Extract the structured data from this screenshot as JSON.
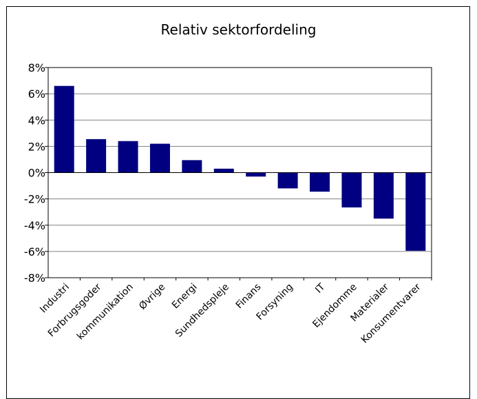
{
  "chart_data": {
    "type": "bar",
    "title": "Relativ sektorfordeling",
    "xlabel": "",
    "ylabel": "",
    "categories": [
      "Industri",
      "Forbrugsgoder",
      "kommunikation",
      "Øvrige",
      "Energi",
      "Sundhedspleje",
      "Finans",
      "Forsyning",
      "IT",
      "Ejendomme",
      "Materialer",
      "Konsumentvarer"
    ],
    "values": [
      6.6,
      2.55,
      2.4,
      2.2,
      0.95,
      0.3,
      -0.3,
      -1.2,
      -1.45,
      -2.65,
      -3.5,
      -5.95
    ],
    "ylim": [
      -8,
      8
    ],
    "yticks": [
      8,
      6,
      4,
      2,
      0,
      -2,
      -4,
      -6,
      -8
    ],
    "ytick_labels": [
      "8%",
      "6%",
      "4%",
      "2%",
      "0%",
      "-2%",
      "-4%",
      "-6%",
      "-8%"
    ],
    "grid": true,
    "legend": "none",
    "bar_color": "#000080",
    "grid_color": "#808080"
  }
}
